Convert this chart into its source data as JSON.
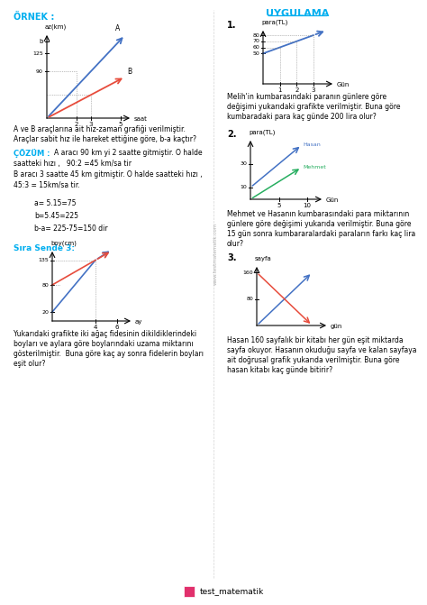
{
  "title_uygulama": "UYGULAMA",
  "title_ornek": "ÖRNEK :",
  "bg_color": "#ffffff",
  "text_color": "#222222",
  "blue_color": "#4472c4",
  "cyan_color": "#00aeef",
  "red_color": "#e74c3c",
  "orange_color": "#e67e22",
  "watermark": "www.testmatematik.com",
  "ornek_text1": "A ve B araçlarına ait hız-zaman grafiği verilmiştir.",
  "ornek_text2": "Araçlar sabit hız ile hareket ettiğine göre, b-a kaçtır?",
  "cozum_label": "ÇÖZÜM :",
  "cozum_text1": "A aracı 90 km yi 2 saatte gitmiştir. O halde",
  "cozum_text2": "saatteki hızı ,   90:2 =45 km/sa tir",
  "cozum_text3": "B aracı 3 saatte 45 km gitmiştir. O halde saatteki hızı ,",
  "cozum_text4": "45:3 = 15km/sa tir.",
  "cozum_eq1": "a= 5.15=75",
  "cozum_eq2": "b=5.45=225",
  "cozum_eq3": "b-a= 225-75=150 dir",
  "sira_sende": "Sıra Sende 3:",
  "sira_text1": "Yukarıdaki grafikte iki ağaç fidesinin dikildiklerindeki",
  "sira_text2": "boyları ve aylara göre boylarındaki uzama miktarını",
  "sira_text3": "gösterilmiştir.  Buna göre kaç ay sonra fidelerin boyları",
  "sira_text4": "eşit olur?",
  "q1_title": "1.",
  "q1_text1": "Melih'in kumbarasındaki paranın günlere göre",
  "q1_text2": "değişimi yukarıdaki grafikte verilmiştir. Buna göre",
  "q1_text3": "kumbaradaki para kaç günde 200 lira olur?",
  "q2_title": "2.",
  "q2_text1": "Mehmet ve Hasanın kumbarasındaki para miktarının",
  "q2_text2": "günlere göre değişimi yukarıda verilmiştir. Buna göre",
  "q2_text3": "15 gün sonra kumbararalardaki paraların farkı kaç lira",
  "q2_text4": "olur?",
  "q3_title": "3.",
  "q3_text1": "Hasan 160 sayfalık bir kitabı her gün eşit miktarda",
  "q3_text2": "sayfa okuyor. Hasanın okuduğu sayfa ve kalan sayfaya",
  "q3_text3": "ait doğrusal grafik yukarıda verilmiştir. Buna göre",
  "q3_text4": "hasan kitabı kaç günde bitirir?",
  "instagram": "test_matematik"
}
